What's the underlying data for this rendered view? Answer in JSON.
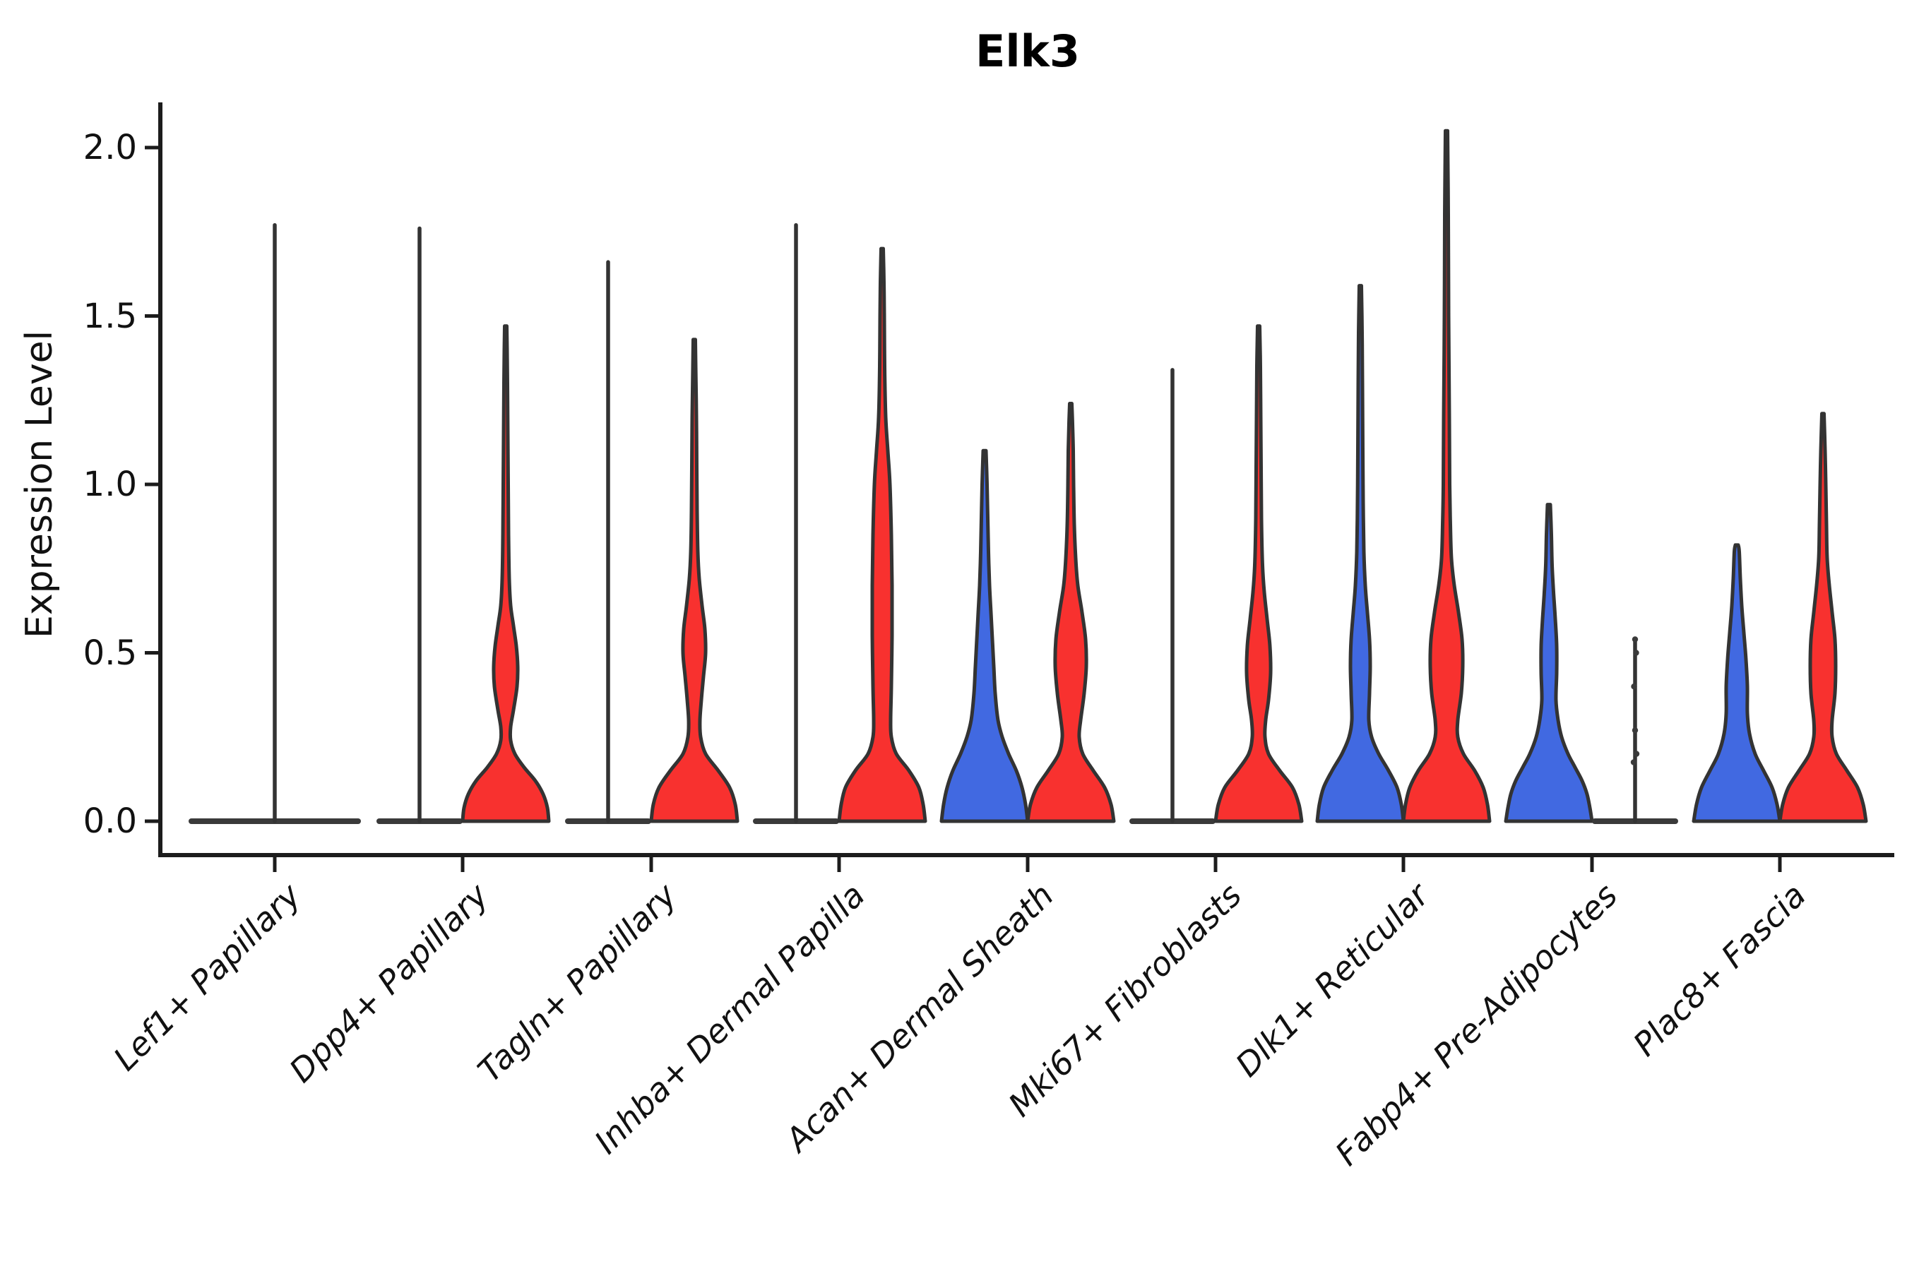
{
  "figure": {
    "title": "Elk3",
    "ylabel": "Expression Level"
  },
  "chart_data": {
    "type": "violin",
    "title": "Elk3",
    "xlabel": "",
    "ylabel": "Expression Level",
    "ylim": [
      -0.1,
      2.13
    ],
    "grid": false,
    "legend_position": "none",
    "ytick_labels": [
      "0.0",
      "0.5",
      "1.0",
      "1.5",
      "2.0"
    ],
    "ytick_values": [
      0.0,
      0.5,
      1.0,
      1.5,
      2.0
    ],
    "categories": [
      "Lef1+ Papillary",
      "Dpp4+ Papillary",
      "Tagln+ Papillary",
      "Inhba+ Dermal Papilla",
      "Acan+ Dermal Sheath",
      "Mki67+ Fibroblasts",
      "Dlk1+ Reticular",
      "Fabp4+ Pre-Adipocytes",
      "Plac8+ Fascia"
    ],
    "colors": {
      "split_left_fill": "#4169E1",
      "split_right_fill": "#F8312F",
      "outline": "#333333",
      "collapsed_bar": "#3a3a3a",
      "axis": "#1c1c1c",
      "text": "#111111"
    },
    "violins": [
      {
        "category": 0,
        "side": "full",
        "kind": "collapsed",
        "color": null,
        "max": 1.77,
        "base_halfwidth": 122
      },
      {
        "category": 1,
        "side": "left",
        "kind": "collapsed",
        "color": null,
        "max": 1.76,
        "base_halfwidth": 61
      },
      {
        "category": 1,
        "side": "right",
        "kind": "density",
        "color": "#F8312F",
        "max": 1.47,
        "profile": [
          [
            0,
            61
          ],
          [
            0.04,
            59
          ],
          [
            0.08,
            53
          ],
          [
            0.12,
            42
          ],
          [
            0.16,
            26
          ],
          [
            0.2,
            13
          ],
          [
            0.24,
            7
          ],
          [
            0.28,
            7
          ],
          [
            0.33,
            11
          ],
          [
            0.4,
            16
          ],
          [
            0.46,
            17
          ],
          [
            0.52,
            15
          ],
          [
            0.58,
            11
          ],
          [
            0.64,
            7
          ],
          [
            0.72,
            5
          ],
          [
            0.85,
            4
          ],
          [
            1.0,
            3.5
          ],
          [
            1.15,
            3
          ],
          [
            1.3,
            2.5
          ],
          [
            1.4,
            2
          ],
          [
            1.47,
            1.5
          ]
        ]
      },
      {
        "category": 2,
        "side": "left",
        "kind": "collapsed",
        "color": null,
        "max": 1.66,
        "base_halfwidth": 61
      },
      {
        "category": 2,
        "side": "right",
        "kind": "density",
        "color": "#F8312F",
        "max": 1.43,
        "profile": [
          [
            0,
            61
          ],
          [
            0.05,
            58
          ],
          [
            0.1,
            50
          ],
          [
            0.15,
            34
          ],
          [
            0.2,
            16
          ],
          [
            0.25,
            9
          ],
          [
            0.3,
            8
          ],
          [
            0.36,
            10
          ],
          [
            0.43,
            13
          ],
          [
            0.5,
            16
          ],
          [
            0.57,
            15
          ],
          [
            0.64,
            11
          ],
          [
            0.72,
            7
          ],
          [
            0.8,
            5
          ],
          [
            0.92,
            4
          ],
          [
            1.05,
            3.5
          ],
          [
            1.2,
            3
          ],
          [
            1.35,
            2
          ],
          [
            1.43,
            1.5
          ]
        ]
      },
      {
        "category": 3,
        "side": "left",
        "kind": "collapsed",
        "color": null,
        "max": 1.77,
        "base_halfwidth": 61
      },
      {
        "category": 3,
        "side": "right",
        "kind": "density",
        "color": "#F8312F",
        "max": 1.7,
        "profile": [
          [
            0,
            61
          ],
          [
            0.05,
            58
          ],
          [
            0.1,
            52
          ],
          [
            0.15,
            38
          ],
          [
            0.2,
            20
          ],
          [
            0.25,
            13
          ],
          [
            0.3,
            12
          ],
          [
            0.4,
            13
          ],
          [
            0.55,
            14
          ],
          [
            0.7,
            14
          ],
          [
            0.85,
            13
          ],
          [
            1.0,
            11
          ],
          [
            1.1,
            8
          ],
          [
            1.2,
            5
          ],
          [
            1.35,
            3.5
          ],
          [
            1.5,
            3
          ],
          [
            1.6,
            2.5
          ],
          [
            1.7,
            1.5
          ]
        ]
      },
      {
        "category": 4,
        "side": "left",
        "kind": "density",
        "color": "#4169E1",
        "max": 1.1,
        "profile": [
          [
            0,
            61
          ],
          [
            0.05,
            58
          ],
          [
            0.1,
            53
          ],
          [
            0.15,
            45
          ],
          [
            0.2,
            34
          ],
          [
            0.25,
            25
          ],
          [
            0.3,
            19
          ],
          [
            0.38,
            15
          ],
          [
            0.46,
            13
          ],
          [
            0.54,
            11
          ],
          [
            0.62,
            9
          ],
          [
            0.7,
            7
          ],
          [
            0.8,
            5.5
          ],
          [
            0.9,
            4.5
          ],
          [
            1.0,
            3.5
          ],
          [
            1.1,
            2
          ]
        ]
      },
      {
        "category": 4,
        "side": "right",
        "kind": "density",
        "color": "#F8312F",
        "max": 1.24,
        "profile": [
          [
            0,
            61
          ],
          [
            0.05,
            57
          ],
          [
            0.1,
            48
          ],
          [
            0.15,
            32
          ],
          [
            0.2,
            17
          ],
          [
            0.25,
            12
          ],
          [
            0.3,
            14
          ],
          [
            0.38,
            19
          ],
          [
            0.46,
            22
          ],
          [
            0.54,
            21
          ],
          [
            0.62,
            16
          ],
          [
            0.7,
            10
          ],
          [
            0.78,
            7
          ],
          [
            0.88,
            5
          ],
          [
            1.0,
            4
          ],
          [
            1.1,
            3.5
          ],
          [
            1.18,
            2.5
          ],
          [
            1.24,
            1.5
          ]
        ]
      },
      {
        "category": 5,
        "side": "left",
        "kind": "collapsed",
        "color": null,
        "max": 1.34,
        "base_halfwidth": 61
      },
      {
        "category": 5,
        "side": "right",
        "kind": "density",
        "color": "#F8312F",
        "max": 1.47,
        "profile": [
          [
            0,
            61
          ],
          [
            0.05,
            57
          ],
          [
            0.1,
            48
          ],
          [
            0.15,
            30
          ],
          [
            0.2,
            14
          ],
          [
            0.25,
            9
          ],
          [
            0.3,
            10
          ],
          [
            0.36,
            14
          ],
          [
            0.44,
            17
          ],
          [
            0.52,
            16
          ],
          [
            0.6,
            12
          ],
          [
            0.68,
            8
          ],
          [
            0.76,
            5.5
          ],
          [
            0.9,
            4
          ],
          [
            1.05,
            3.5
          ],
          [
            1.2,
            3
          ],
          [
            1.35,
            2.5
          ],
          [
            1.47,
            1.5
          ]
        ]
      },
      {
        "category": 6,
        "side": "left",
        "kind": "density",
        "color": "#4169E1",
        "max": 1.59,
        "profile": [
          [
            0,
            61
          ],
          [
            0.05,
            58
          ],
          [
            0.1,
            52
          ],
          [
            0.15,
            40
          ],
          [
            0.2,
            26
          ],
          [
            0.25,
            16
          ],
          [
            0.3,
            12
          ],
          [
            0.38,
            13
          ],
          [
            0.46,
            14
          ],
          [
            0.54,
            13
          ],
          [
            0.62,
            10
          ],
          [
            0.7,
            7
          ],
          [
            0.8,
            5
          ],
          [
            0.95,
            4
          ],
          [
            1.1,
            3.5
          ],
          [
            1.3,
            3
          ],
          [
            1.45,
            2.5
          ],
          [
            1.59,
            1.5
          ]
        ]
      },
      {
        "category": 6,
        "side": "right",
        "kind": "density",
        "color": "#F8312F",
        "max": 2.05,
        "profile": [
          [
            0,
            61
          ],
          [
            0.05,
            58
          ],
          [
            0.1,
            52
          ],
          [
            0.15,
            40
          ],
          [
            0.2,
            24
          ],
          [
            0.25,
            16
          ],
          [
            0.3,
            16
          ],
          [
            0.38,
            21
          ],
          [
            0.46,
            23
          ],
          [
            0.54,
            22
          ],
          [
            0.62,
            17
          ],
          [
            0.7,
            11
          ],
          [
            0.78,
            7
          ],
          [
            0.88,
            5.5
          ],
          [
            1.0,
            4.5
          ],
          [
            1.2,
            4
          ],
          [
            1.5,
            3
          ],
          [
            1.8,
            2.5
          ],
          [
            2.05,
            1.5
          ]
        ]
      },
      {
        "category": 7,
        "side": "left",
        "kind": "density",
        "color": "#4169E1",
        "max": 0.94,
        "profile": [
          [
            0,
            61
          ],
          [
            0.04,
            58
          ],
          [
            0.08,
            54
          ],
          [
            0.12,
            47
          ],
          [
            0.16,
            37
          ],
          [
            0.2,
            27
          ],
          [
            0.25,
            18
          ],
          [
            0.3,
            13
          ],
          [
            0.36,
            10
          ],
          [
            0.44,
            11
          ],
          [
            0.52,
            11
          ],
          [
            0.6,
            9
          ],
          [
            0.68,
            6.5
          ],
          [
            0.76,
            4.5
          ],
          [
            0.85,
            3.5
          ],
          [
            0.94,
            2
          ]
        ]
      },
      {
        "category": 7,
        "side": "right",
        "kind": "collapsed",
        "color": null,
        "max": 0.54,
        "base_halfwidth": 61,
        "points": [
          0.54,
          0.5,
          0.4,
          0.27,
          0.2,
          0.175
        ]
      },
      {
        "category": 8,
        "side": "left",
        "kind": "density",
        "color": "#4169E1",
        "max": 0.82,
        "profile": [
          [
            0,
            61
          ],
          [
            0.05,
            57
          ],
          [
            0.1,
            50
          ],
          [
            0.15,
            38
          ],
          [
            0.2,
            26
          ],
          [
            0.26,
            18
          ],
          [
            0.32,
            15
          ],
          [
            0.4,
            15
          ],
          [
            0.48,
            13
          ],
          [
            0.56,
            10
          ],
          [
            0.64,
            7
          ],
          [
            0.72,
            5
          ],
          [
            0.8,
            3.5
          ],
          [
            0.82,
            2
          ]
        ]
      },
      {
        "category": 8,
        "side": "right",
        "kind": "density",
        "color": "#F8312F",
        "max": 1.21,
        "profile": [
          [
            0,
            61
          ],
          [
            0.05,
            57
          ],
          [
            0.1,
            49
          ],
          [
            0.15,
            34
          ],
          [
            0.2,
            19
          ],
          [
            0.25,
            13
          ],
          [
            0.3,
            13
          ],
          [
            0.38,
            17
          ],
          [
            0.46,
            18
          ],
          [
            0.54,
            17
          ],
          [
            0.62,
            13
          ],
          [
            0.7,
            9
          ],
          [
            0.78,
            6
          ],
          [
            0.88,
            5
          ],
          [
            1.0,
            4
          ],
          [
            1.1,
            3
          ],
          [
            1.21,
            1.5
          ]
        ]
      }
    ]
  }
}
